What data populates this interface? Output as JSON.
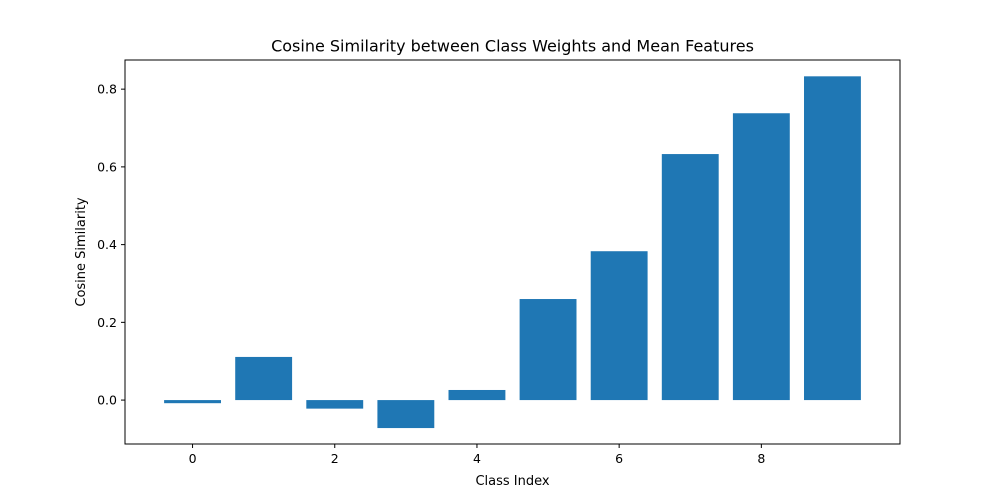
{
  "chart_data": {
    "type": "bar",
    "title": "Cosine Similarity between Class Weights and Mean Features",
    "xlabel": "Class Index",
    "ylabel": "Cosine Similarity",
    "categories": [
      0,
      1,
      2,
      3,
      4,
      5,
      6,
      7,
      8,
      9
    ],
    "values": [
      -0.008,
      0.111,
      -0.022,
      -0.072,
      0.026,
      0.26,
      0.383,
      0.633,
      0.738,
      0.833
    ],
    "xticks": [
      "0",
      "2",
      "4",
      "6",
      "8"
    ],
    "yticks": [
      "0.0",
      "0.2",
      "0.4",
      "0.6",
      "0.8"
    ],
    "xlim": [
      -0.95,
      9.95
    ],
    "ylim": [
      -0.113,
      0.875
    ],
    "bar_color": "#1f77b4",
    "grid": false,
    "legend": false
  }
}
